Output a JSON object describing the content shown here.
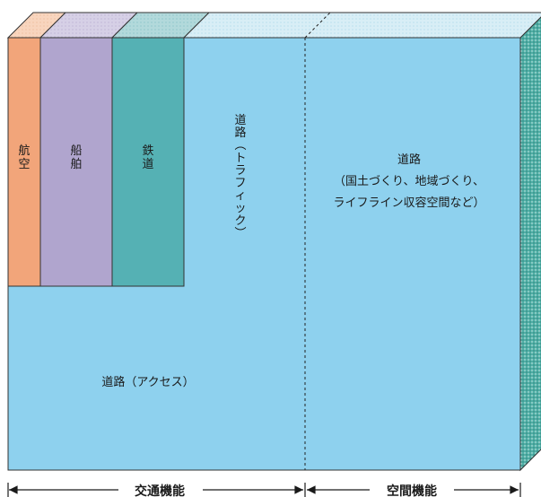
{
  "blocks": {
    "aviation": {
      "label": "航空",
      "color": "#F2A57A"
    },
    "shipping": {
      "label": "船舶",
      "color": "#B0A5CE"
    },
    "railway": {
      "label": "鉄道",
      "color": "#55B1B4"
    },
    "road_traffic": {
      "label": "道路（トラフィック）"
    },
    "road_access": {
      "label": "道路（アクセス）"
    },
    "road_space": {
      "lines": [
        "道路",
        "（国土づくり、地域づくり、",
        "ライフライン収容空間など）"
      ]
    },
    "road_color": "#8ED1EE"
  },
  "axis": {
    "left_label": "交通機能",
    "right_label": "空間機能"
  }
}
